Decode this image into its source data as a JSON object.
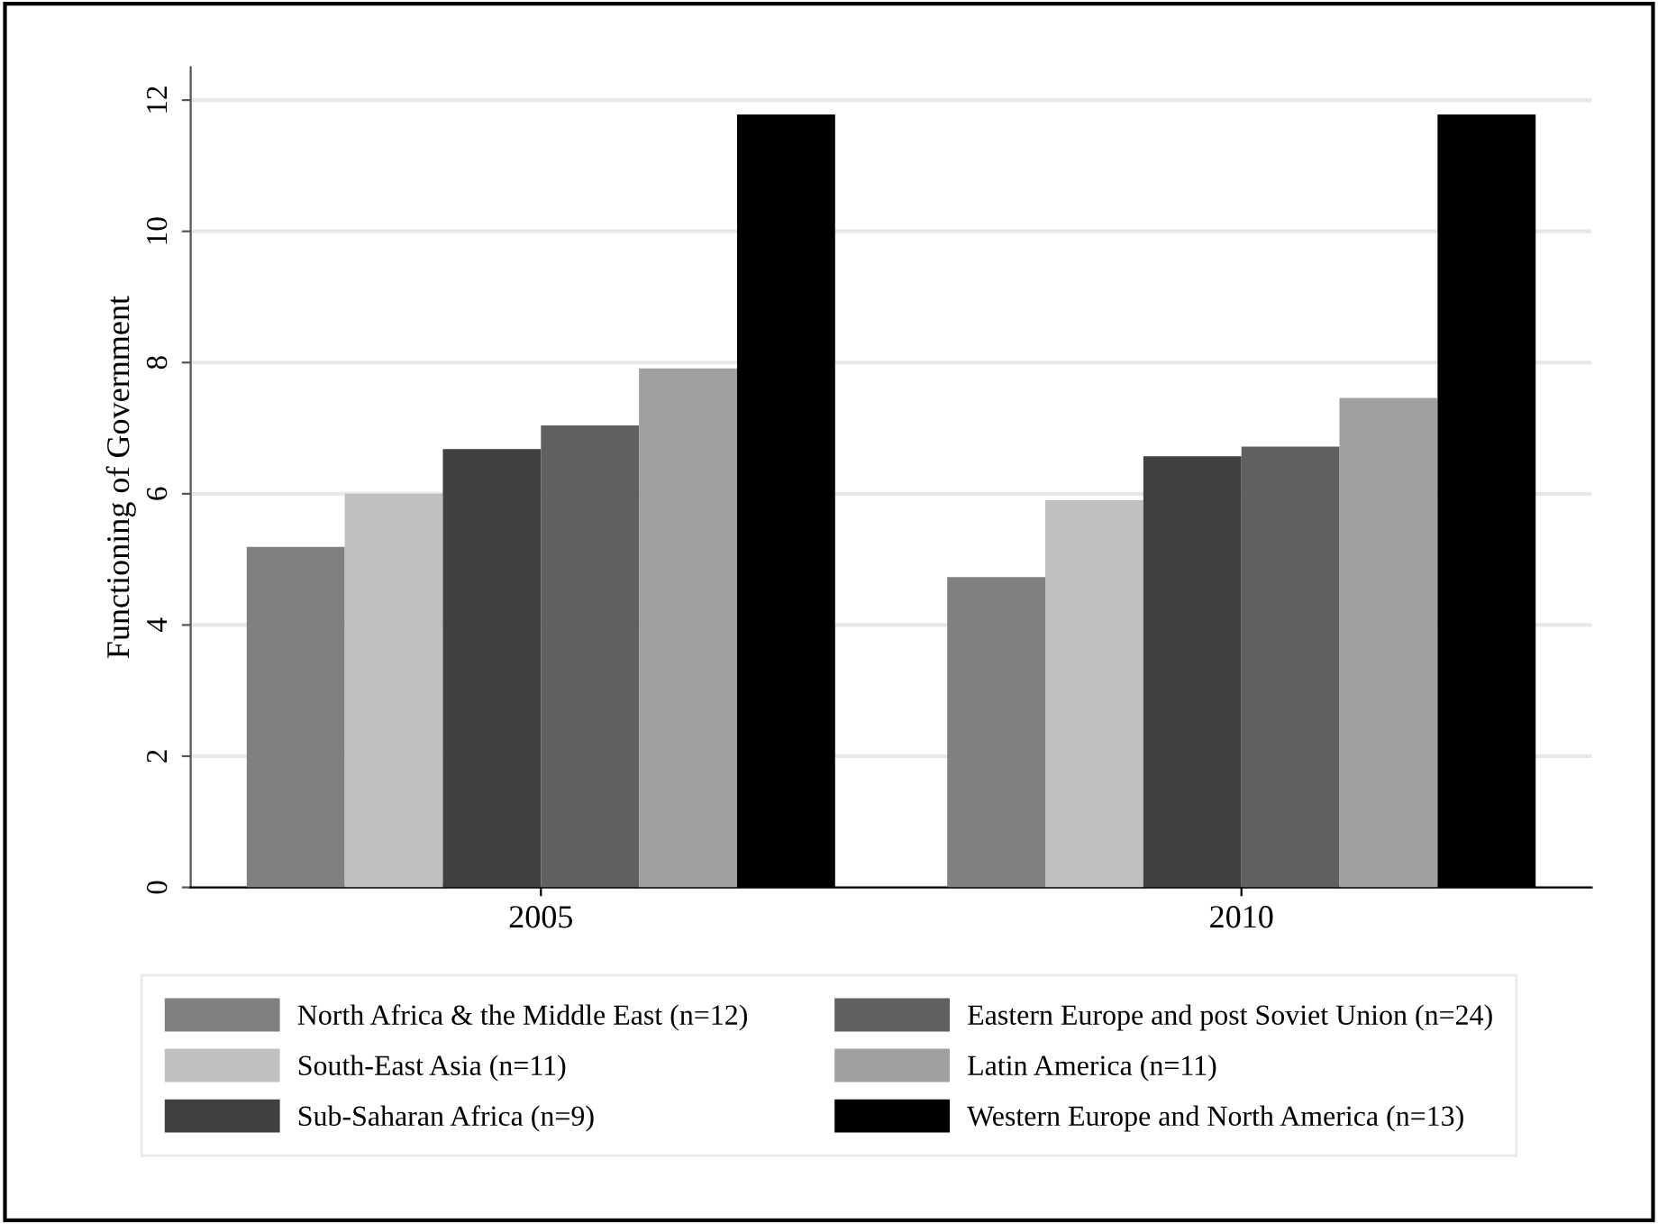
{
  "chart_data": {
    "type": "bar",
    "ylabel": "Functioning of Government",
    "categories": [
      "2005",
      "2010"
    ],
    "series": [
      {
        "name": "North Africa & the Middle East (n=12)",
        "color": "#808080",
        "values": [
          5.19,
          4.73
        ]
      },
      {
        "name": "South-East Asia (n=11)",
        "color": "#c0c0c0",
        "values": [
          6.0,
          5.9
        ]
      },
      {
        "name": "Sub-Saharan Africa (n=9)",
        "color": "#404040",
        "values": [
          6.68,
          6.57
        ]
      },
      {
        "name": "Eastern Europe and post Soviet Union (n=24)",
        "color": "#606060",
        "values": [
          7.04,
          6.72
        ]
      },
      {
        "name": "Latin America (n=11)",
        "color": "#a0a0a0",
        "values": [
          7.91,
          7.46
        ]
      },
      {
        "name": "Western Europe and North America (n=13)",
        "color": "#000000",
        "values": [
          11.78,
          11.78
        ]
      }
    ],
    "ylim": [
      0,
      12.5
    ],
    "yticks": [
      0,
      2,
      4,
      6,
      8,
      10,
      12
    ],
    "grid": "y",
    "legend": "bottom"
  }
}
